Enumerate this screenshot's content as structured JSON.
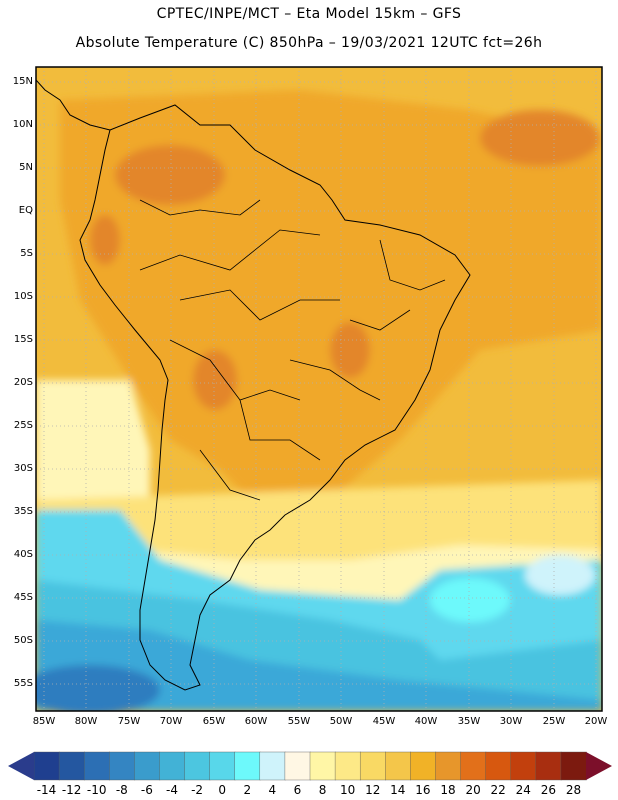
{
  "header": {
    "line1": "CPTEC/INPE/MCT –  Eta Model 15km – GFS",
    "line2": "Absolute Temperature (C) 850hPa – 19/03/2021 12UTC fct=26h"
  },
  "map": {
    "lat_labels": [
      "15N",
      "10N",
      "5N",
      "EQ",
      "5S",
      "10S",
      "15S",
      "20S",
      "25S",
      "30S",
      "35S",
      "40S",
      "45S",
      "50S",
      "55S"
    ],
    "lon_labels": [
      "85W",
      "80W",
      "75W",
      "70W",
      "65W",
      "60W",
      "55W",
      "50W",
      "45W",
      "40W",
      "35W",
      "30W",
      "25W",
      "20W"
    ],
    "colors": {
      "light_blue_water": "#5fd8ee",
      "cyan": "#4ae3f3",
      "pale_yellow": "#fff6b8",
      "yellow": "#fde27a",
      "gold": "#f2bc3c",
      "orange": "#f0a82c",
      "dark_orange": "#e3862a",
      "blue": "#3aa8d8",
      "deep_blue": "#2d7dbf",
      "grid": "#d0d0d0"
    }
  },
  "colorbar": {
    "labels": [
      "-14",
      "-12",
      "-10",
      "-8",
      "-6",
      "-4",
      "-2",
      "0",
      "2",
      "4",
      "6",
      "8",
      "10",
      "12",
      "14",
      "16",
      "18",
      "20",
      "22",
      "24",
      "26",
      "28"
    ],
    "colors": [
      "#1f3f8f",
      "#2457a0",
      "#2c6fb4",
      "#3485c2",
      "#3a9ccc",
      "#42b2d6",
      "#4cc6e0",
      "#58d7ea",
      "#6df9fb",
      "#cff3fb",
      "#fff7e4",
      "#fff6a6",
      "#fde987",
      "#f9d964",
      "#f4c64a",
      "#f1b227",
      "#e7962b",
      "#e2701a",
      "#d7580f",
      "#c2400d",
      "#a82e10",
      "#7c1a0f"
    ],
    "left_arrow_color": "#2a3c8c",
    "right_arrow_color": "#7c0f2a"
  }
}
